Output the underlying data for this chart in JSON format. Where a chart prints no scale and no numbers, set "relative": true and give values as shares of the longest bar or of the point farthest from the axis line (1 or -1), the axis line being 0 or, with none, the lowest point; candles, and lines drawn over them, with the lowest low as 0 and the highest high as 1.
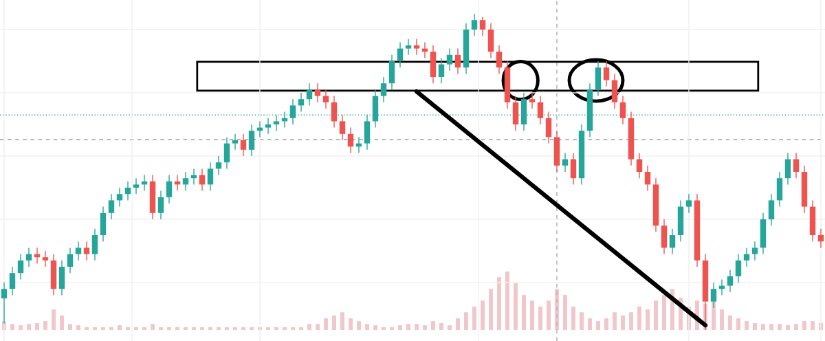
{
  "chart_data": {
    "type": "candlestick",
    "relative": true,
    "grid": true,
    "colors": [
      "#26a69a",
      "#26a69a",
      "#26a69a",
      "#26a69a",
      "#ef5350",
      "#ef5350",
      "#ef5350",
      "#26a69a",
      "#26a69a",
      "#26a69a",
      "#ef5350",
      "#26a69a",
      "#26a69a",
      "#26a69a",
      "#26a69a",
      "#26a69a",
      "#26a69a",
      "#26a69a",
      "#ef5350",
      "#26a69a",
      "#26a69a",
      "#ef5350",
      "#26a69a",
      "#26a69a",
      "#ef5350",
      "#26a69a",
      "#26a69a",
      "#26a69a",
      "#26a69a",
      "#ef5350",
      "#26a69a",
      "#26a69a",
      "#26a69a",
      "#26a69a",
      "#26a69a",
      "#26a69a",
      "#26a69a",
      "#26a69a",
      "#ef5350",
      "#ef5350",
      "#ef5350",
      "#ef5350",
      "#ef5350",
      "#26a69a",
      "#26a69a",
      "#26a69a",
      "#26a69a",
      "#26a69a",
      "#26a69a",
      "#26a69a",
      "#ef5350",
      "#ef5350",
      "#ef5350",
      "#26a69a",
      "#26a69a",
      "#ef5350",
      "#26a69a",
      "#26a69a",
      "#ef5350",
      "#ef5350",
      "#ef5350",
      "#ef5350",
      "#ef5350",
      "#26a69a",
      "#ef5350",
      "#ef5350",
      "#ef5350",
      "#ef5350",
      "#26a69a",
      "#ef5350",
      "#26a69a",
      "#26a69a",
      "#26a69a",
      "#ef5350",
      "#ef5350",
      "#ef5350",
      "#ef5350",
      "#ef5350",
      "#ef5350",
      "#ef5350",
      "#ef5350",
      "#26a69a",
      "#26a69a",
      "#26a69a",
      "#ef5350",
      "#ef5350",
      "#26a69a",
      "#26a69a",
      "#26a69a",
      "#26a69a",
      "#26a69a",
      "#26a69a",
      "#26a69a",
      "#26a69a",
      "#26a69a",
      "#26a69a",
      "#ef5350",
      "#ef5350",
      "#ef5350",
      "#ef5350"
    ],
    "categories": [
      null,
      null,
      null,
      null,
      null,
      null,
      null,
      null,
      null,
      null,
      null,
      null,
      null,
      null,
      null,
      null,
      null,
      null,
      null,
      null,
      null,
      null,
      null,
      null,
      null,
      null,
      null,
      null,
      null,
      null,
      null,
      null,
      null,
      null,
      null,
      null,
      null,
      null,
      null,
      null,
      null,
      null,
      null,
      null,
      null,
      null,
      null,
      null,
      null,
      null,
      null,
      null,
      null,
      null,
      null,
      null,
      null,
      null,
      null,
      null,
      null,
      null,
      null,
      null,
      null,
      null,
      null,
      null,
      null,
      null,
      null,
      null,
      null,
      null,
      null,
      null,
      null,
      null,
      null,
      null,
      null,
      null,
      null,
      null,
      null,
      null,
      null,
      null,
      null,
      null,
      null,
      null,
      null,
      null,
      null,
      null,
      null,
      null,
      null,
      null
    ],
    "ohlc": [
      [
        0.1,
        0.15,
        0.02,
        0.13
      ],
      [
        0.13,
        0.2,
        0.11,
        0.18
      ],
      [
        0.18,
        0.24,
        0.16,
        0.22
      ],
      [
        0.22,
        0.26,
        0.2,
        0.24
      ],
      [
        0.24,
        0.26,
        0.21,
        0.23
      ],
      [
        0.23,
        0.25,
        0.2,
        0.22
      ],
      [
        0.22,
        0.24,
        0.11,
        0.13
      ],
      [
        0.13,
        0.22,
        0.11,
        0.2
      ],
      [
        0.2,
        0.26,
        0.18,
        0.24
      ],
      [
        0.24,
        0.28,
        0.22,
        0.26
      ],
      [
        0.26,
        0.28,
        0.22,
        0.24
      ],
      [
        0.24,
        0.32,
        0.22,
        0.3
      ],
      [
        0.3,
        0.39,
        0.28,
        0.37
      ],
      [
        0.37,
        0.43,
        0.35,
        0.41
      ],
      [
        0.41,
        0.45,
        0.39,
        0.43
      ],
      [
        0.43,
        0.47,
        0.41,
        0.45
      ],
      [
        0.45,
        0.48,
        0.43,
        0.46
      ],
      [
        0.46,
        0.49,
        0.44,
        0.47
      ],
      [
        0.47,
        0.49,
        0.35,
        0.37
      ],
      [
        0.37,
        0.44,
        0.35,
        0.42
      ],
      [
        0.42,
        0.49,
        0.4,
        0.47
      ],
      [
        0.47,
        0.49,
        0.44,
        0.46
      ],
      [
        0.46,
        0.5,
        0.44,
        0.48
      ],
      [
        0.48,
        0.51,
        0.46,
        0.49
      ],
      [
        0.49,
        0.51,
        0.44,
        0.46
      ],
      [
        0.46,
        0.53,
        0.44,
        0.51
      ],
      [
        0.51,
        0.55,
        0.49,
        0.53
      ],
      [
        0.53,
        0.61,
        0.51,
        0.59
      ],
      [
        0.59,
        0.62,
        0.57,
        0.6
      ],
      [
        0.6,
        0.62,
        0.55,
        0.57
      ],
      [
        0.57,
        0.65,
        0.55,
        0.63
      ],
      [
        0.63,
        0.66,
        0.61,
        0.64
      ],
      [
        0.64,
        0.67,
        0.62,
        0.65
      ],
      [
        0.65,
        0.68,
        0.63,
        0.66
      ],
      [
        0.66,
        0.69,
        0.64,
        0.67
      ],
      [
        0.67,
        0.73,
        0.65,
        0.71
      ],
      [
        0.71,
        0.75,
        0.69,
        0.73
      ],
      [
        0.73,
        0.78,
        0.71,
        0.76
      ],
      [
        0.76,
        0.78,
        0.72,
        0.74
      ],
      [
        0.74,
        0.76,
        0.7,
        0.72
      ],
      [
        0.72,
        0.74,
        0.64,
        0.66
      ],
      [
        0.66,
        0.68,
        0.6,
        0.62
      ],
      [
        0.62,
        0.64,
        0.56,
        0.58
      ],
      [
        0.58,
        0.61,
        0.56,
        0.59
      ],
      [
        0.59,
        0.68,
        0.57,
        0.66
      ],
      [
        0.66,
        0.76,
        0.64,
        0.74
      ],
      [
        0.74,
        0.8,
        0.72,
        0.78
      ],
      [
        0.78,
        0.87,
        0.76,
        0.85
      ],
      [
        0.85,
        0.91,
        0.83,
        0.89
      ],
      [
        0.89,
        0.92,
        0.87,
        0.9
      ],
      [
        0.9,
        0.92,
        0.87,
        0.89
      ],
      [
        0.89,
        0.91,
        0.86,
        0.88
      ],
      [
        0.88,
        0.9,
        0.78,
        0.8
      ],
      [
        0.8,
        0.86,
        0.78,
        0.84
      ],
      [
        0.84,
        0.89,
        0.82,
        0.87
      ],
      [
        0.87,
        0.89,
        0.81,
        0.83
      ],
      [
        0.83,
        0.97,
        0.81,
        0.95
      ],
      [
        0.95,
        1.0,
        0.93,
        0.98
      ],
      [
        0.98,
        0.99,
        0.93,
        0.95
      ],
      [
        0.95,
        0.97,
        0.86,
        0.88
      ],
      [
        0.88,
        0.9,
        0.81,
        0.83
      ],
      [
        0.83,
        0.85,
        0.7,
        0.72
      ],
      [
        0.72,
        0.74,
        0.63,
        0.65
      ],
      [
        0.65,
        0.75,
        0.63,
        0.73
      ],
      [
        0.73,
        0.75,
        0.7,
        0.72
      ],
      [
        0.72,
        0.74,
        0.65,
        0.67
      ],
      [
        0.67,
        0.69,
        0.59,
        0.61
      ],
      [
        0.61,
        0.63,
        0.5,
        0.52
      ],
      [
        0.52,
        0.56,
        0.5,
        0.54
      ],
      [
        0.54,
        0.56,
        0.46,
        0.48
      ],
      [
        0.48,
        0.65,
        0.46,
        0.63
      ],
      [
        0.63,
        0.78,
        0.61,
        0.76
      ],
      [
        0.76,
        0.85,
        0.74,
        0.83
      ],
      [
        0.83,
        0.85,
        0.77,
        0.79
      ],
      [
        0.79,
        0.81,
        0.7,
        0.72
      ],
      [
        0.72,
        0.74,
        0.65,
        0.67
      ],
      [
        0.67,
        0.69,
        0.52,
        0.54
      ],
      [
        0.54,
        0.56,
        0.48,
        0.5
      ],
      [
        0.5,
        0.52,
        0.44,
        0.46
      ],
      [
        0.46,
        0.48,
        0.31,
        0.33
      ],
      [
        0.33,
        0.35,
        0.24,
        0.26
      ],
      [
        0.26,
        0.32,
        0.24,
        0.3
      ],
      [
        0.3,
        0.41,
        0.28,
        0.39
      ],
      [
        0.39,
        0.43,
        0.37,
        0.41
      ],
      [
        0.41,
        0.43,
        0.2,
        0.22
      ],
      [
        0.22,
        0.24,
        0.0,
        0.09
      ],
      [
        0.09,
        0.15,
        0.07,
        0.13
      ],
      [
        0.13,
        0.16,
        0.11,
        0.14
      ],
      [
        0.14,
        0.19,
        0.12,
        0.17
      ],
      [
        0.17,
        0.24,
        0.15,
        0.22
      ],
      [
        0.22,
        0.26,
        0.2,
        0.24
      ],
      [
        0.24,
        0.28,
        0.22,
        0.26
      ],
      [
        0.26,
        0.37,
        0.24,
        0.35
      ],
      [
        0.35,
        0.43,
        0.33,
        0.41
      ],
      [
        0.41,
        0.5,
        0.39,
        0.48
      ],
      [
        0.48,
        0.56,
        0.46,
        0.54
      ],
      [
        0.54,
        0.56,
        0.48,
        0.5
      ],
      [
        0.5,
        0.52,
        0.37,
        0.39
      ],
      [
        0.39,
        0.41,
        0.28,
        0.3
      ],
      [
        0.3,
        0.32,
        0.26,
        0.28
      ]
    ],
    "series": [
      {
        "type": "bar",
        "color": "#e6a3a8",
        "values": [
          0.028,
          0.019,
          0.015,
          0.019,
          0.022,
          0.028,
          0.065,
          0.046,
          0.019,
          0.015,
          0.009,
          0.009,
          0.009,
          0.009,
          0.015,
          0.009,
          0.009,
          0.009,
          0.019,
          0.009,
          0.009,
          0.009,
          0.009,
          0.009,
          0.009,
          0.009,
          0.009,
          0.009,
          0.009,
          0.009,
          0.009,
          0.009,
          0.009,
          0.009,
          0.009,
          0.009,
          0.009,
          0.019,
          0.019,
          0.037,
          0.046,
          0.056,
          0.037,
          0.028,
          0.019,
          0.015,
          0.009,
          0.009,
          0.015,
          0.019,
          0.019,
          0.015,
          0.028,
          0.022,
          0.015,
          0.037,
          0.056,
          0.074,
          0.093,
          0.13,
          0.167,
          0.185,
          0.148,
          0.111,
          0.093,
          0.074,
          0.093,
          0.13,
          0.111,
          0.074,
          0.056,
          0.037,
          0.028,
          0.037,
          0.056,
          0.046,
          0.056,
          0.074,
          0.065,
          0.093,
          0.111,
          0.13,
          0.102,
          0.074,
          0.093,
          0.083,
          0.093,
          0.065,
          0.046,
          0.037,
          0.028,
          0.022,
          0.019,
          0.019,
          0.019,
          0.015,
          0.019,
          0.028,
          0.028,
          0.022
        ]
      },
      {
        "type": "line",
        "color": "#000000",
        "values": [
          null,
          null,
          null,
          null,
          null,
          null,
          null,
          null,
          null,
          null,
          null,
          null,
          null,
          null,
          null,
          null,
          null,
          null,
          null,
          null,
          null,
          null,
          null,
          null,
          null,
          null,
          null,
          null,
          null,
          null,
          null,
          null,
          null,
          null,
          null,
          null,
          null,
          null,
          null,
          null,
          null,
          null,
          null,
          null,
          null,
          null,
          null,
          null,
          null,
          null,
          0.754,
          null,
          null,
          null,
          null,
          null,
          null,
          null,
          null,
          null,
          null,
          null,
          null,
          null,
          null,
          null,
          null,
          null,
          null,
          null,
          null,
          null,
          null,
          null,
          null,
          null,
          null,
          null,
          null,
          null,
          null,
          null,
          null,
          null,
          null,
          0.015,
          null,
          null,
          null,
          null,
          null,
          null,
          null,
          null,
          null,
          null,
          null,
          null,
          null,
          null
        ]
      }
    ],
    "ref_lines": [
      {
        "axis": "y",
        "value": 0.68,
        "color": "#26a69a",
        "line_style": "dotted"
      },
      {
        "axis": "y",
        "value": 0.602,
        "color": "#888888",
        "line_style": "dashed"
      }
    ]
  }
}
